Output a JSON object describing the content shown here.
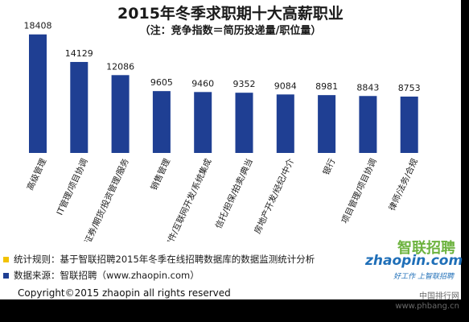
{
  "chart_data": {
    "type": "bar",
    "title": "2015年冬季求职期十大高薪职业",
    "subtitle": "（注：竞争指数＝简历投递量/职位量）",
    "categories": [
      "高级管理",
      "IT管理/项目协调",
      "证券/期货/投资管理/服务",
      "销售管理",
      "软件/互联网开发/系统集成",
      "信托/担保/拍卖/典当",
      "房地产开发/经纪/中介",
      "银行",
      "项目管理/项目协调",
      "律师/法务/合规"
    ],
    "values": [
      18408,
      14129,
      12086,
      9605,
      9460,
      9352,
      9084,
      8981,
      8843,
      8753
    ],
    "ylim": [
      0,
      20000
    ],
    "bar_color": "#1f3f93",
    "grid": false,
    "legend": "none"
  },
  "notes": [
    {
      "text": "统计规则：基于智联招聘2015年冬季在线招聘数据库的数据监测统计分析",
      "color": "#f2c200"
    },
    {
      "text": "数据来源：智联招聘（www.zhaopin.com）",
      "color": "#1f3f93"
    }
  ],
  "logo": {
    "cn": "智联招聘",
    "en": "zhaopin.com",
    "slogan": "好工作 上智联招聘"
  },
  "footer": "Copyright©2015 zhaopin all rights reserved",
  "watermark": {
    "line1": "中国排行网",
    "line2": "www.phbang.cn"
  }
}
